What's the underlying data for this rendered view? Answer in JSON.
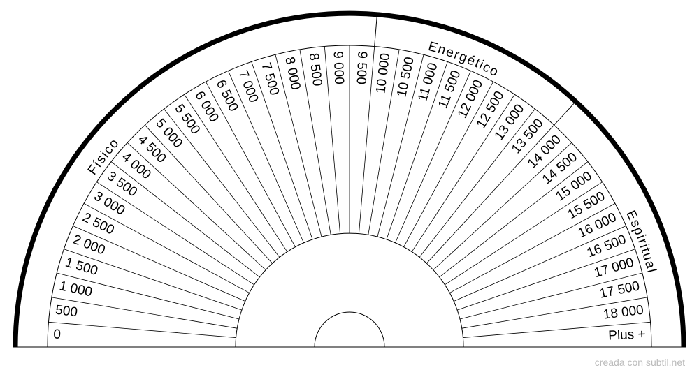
{
  "sections": [
    "Físico",
    "Energético",
    "Espiritual"
  ],
  "segments": [
    "0",
    "500",
    "1 000",
    "1 500",
    "2 000",
    "2 500",
    "3 000",
    "3 500",
    "4 000",
    "4 500",
    "5 000",
    "5 500",
    "6 000",
    "6 500",
    "7 000",
    "7 500",
    "8 000",
    "8 500",
    "9 000",
    "9 500",
    "10 000",
    "10 500",
    "11 000",
    "11 500",
    "12 000",
    "12 500",
    "13 000",
    "13 500",
    "14 000",
    "14 500",
    "15 000",
    "15 500",
    "16 000",
    "16 500",
    "17 000",
    "17 500",
    "18 000",
    "Plus +"
  ],
  "credit": "creada con subtil.net"
}
